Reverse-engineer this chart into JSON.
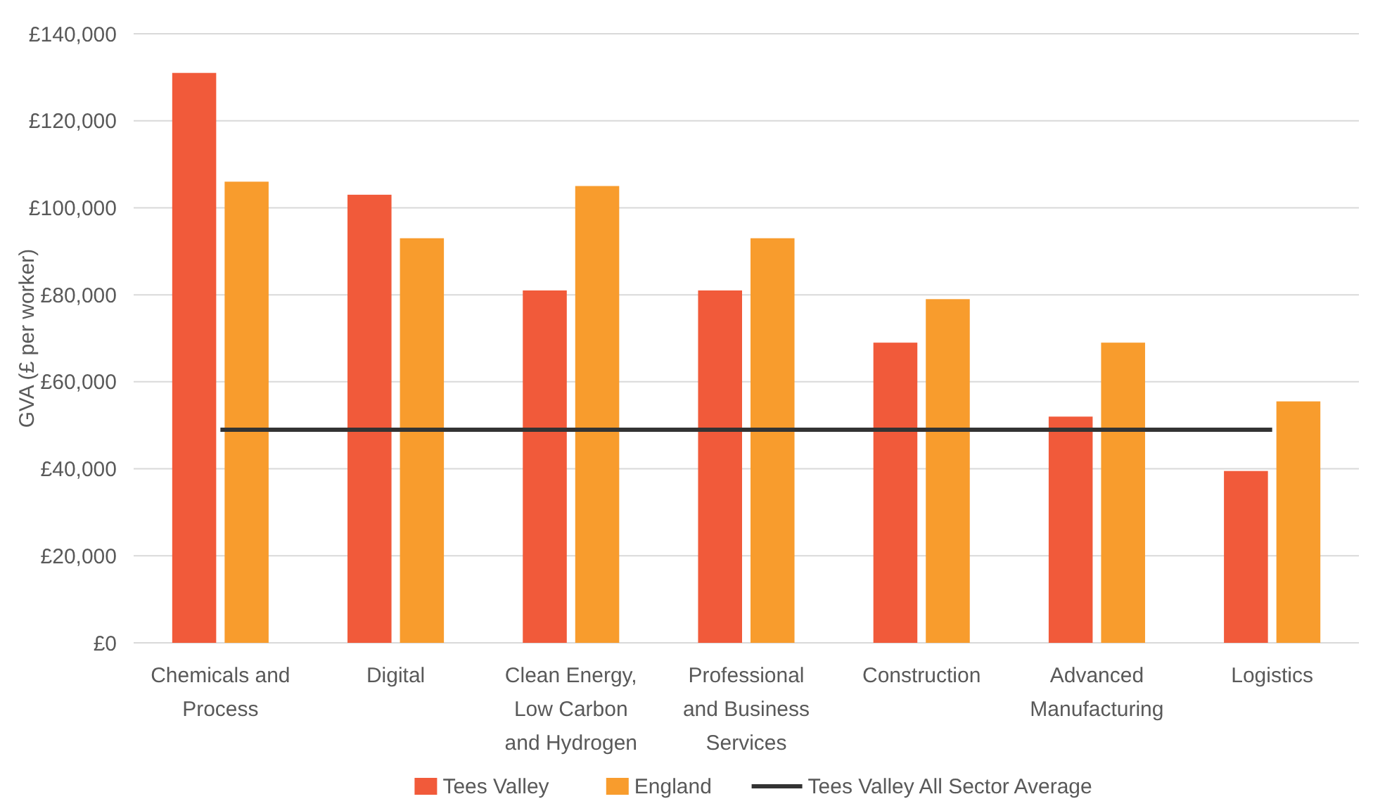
{
  "chart_data": {
    "type": "bar",
    "ylabel": "GVA (£ per worker)",
    "categories": [
      "Chemicals and Process",
      "Digital",
      "Clean Energy, Low Carbon and Hydrogen",
      "Professional and Business Services",
      "Construction",
      "Advanced Manufacturing",
      "Logistics"
    ],
    "series": [
      {
        "name": "Tees Valley",
        "color": "#f15a3a",
        "values": [
          131000,
          103000,
          81000,
          81000,
          69000,
          52000,
          39500
        ]
      },
      {
        "name": "England",
        "color": "#f89c2d",
        "values": [
          106000,
          93000,
          105000,
          93000,
          79000,
          69000,
          55500
        ]
      },
      {
        "name": "Tees Valley All Sector Average",
        "type": "line",
        "color": "#333333",
        "values": [
          49000,
          49000,
          49000,
          49000,
          49000,
          49000,
          49000
        ]
      }
    ],
    "ylim": [
      0,
      140000
    ],
    "yticks": [
      {
        "value": 0,
        "label": "£0"
      },
      {
        "value": 20000,
        "label": "£20,000"
      },
      {
        "value": 40000,
        "label": "£40,000"
      },
      {
        "value": 60000,
        "label": "£60,000"
      },
      {
        "value": 80000,
        "label": "£80,000"
      },
      {
        "value": 100000,
        "label": "£100,000"
      },
      {
        "value": 120000,
        "label": "£120,000"
      },
      {
        "value": 140000,
        "label": "£140,000"
      }
    ],
    "grid": "y",
    "legend": "bottom"
  }
}
